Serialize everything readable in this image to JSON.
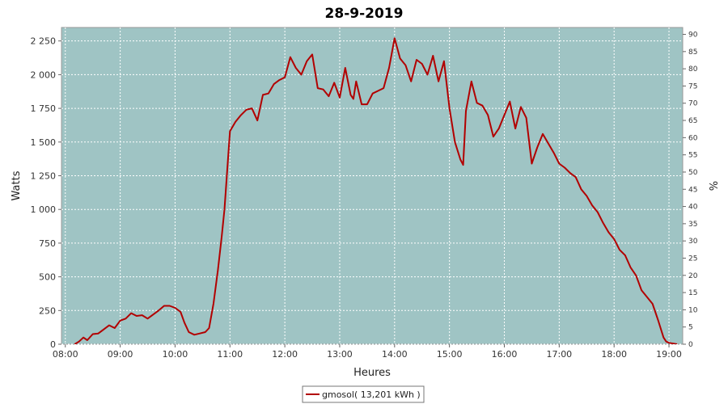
{
  "chart_data": {
    "type": "line",
    "title": "28-9-2019",
    "xlabel": "Heures",
    "ylabel": "Watts",
    "y2label": "%",
    "xlim": [
      7.93,
      19.25
    ],
    "ylim": [
      0,
      2350
    ],
    "y2lim": [
      0,
      92
    ],
    "x_ticks": [
      8,
      9,
      10,
      11,
      12,
      13,
      14,
      15,
      16,
      17,
      18,
      19
    ],
    "x_tick_labels": [
      "08:00",
      "09:00",
      "10:00",
      "11:00",
      "12:00",
      "13:00",
      "14:00",
      "15:00",
      "16:00",
      "17:00",
      "18:00",
      "19:00"
    ],
    "y_ticks": [
      0,
      250,
      500,
      750,
      1000,
      1250,
      1500,
      1750,
      2000,
      2250
    ],
    "y_tick_labels": [
      "0",
      "250",
      "500",
      "750",
      "1 000",
      "1 250",
      "1 500",
      "1 750",
      "2 000",
      "2 250"
    ],
    "y2_ticks": [
      0,
      5,
      10,
      15,
      20,
      25,
      30,
      35,
      40,
      45,
      50,
      55,
      60,
      65,
      70,
      75,
      80,
      85,
      90
    ],
    "y2_tick_labels": [
      "0",
      "5",
      "10",
      "15",
      "20",
      "25",
      "30",
      "35",
      "40",
      "45",
      "50",
      "55",
      "60",
      "65",
      "70",
      "75",
      "80",
      "85",
      "90"
    ],
    "grid": true,
    "legend_position": "bottom-center",
    "colors": {
      "line": "#b20000",
      "plot_bg": "#9fc4c4",
      "grid": "#ffffff"
    },
    "series": [
      {
        "name": "gmosol( 13,201 kWh )",
        "x": [
          8.17,
          8.25,
          8.33,
          8.4,
          8.5,
          8.6,
          8.7,
          8.8,
          8.9,
          9.0,
          9.1,
          9.2,
          9.3,
          9.4,
          9.5,
          9.6,
          9.7,
          9.8,
          9.9,
          10.0,
          10.1,
          10.17,
          10.25,
          10.35,
          10.45,
          10.55,
          10.62,
          10.7,
          10.78,
          10.85,
          10.9,
          11.0,
          11.1,
          11.2,
          11.3,
          11.4,
          11.5,
          11.6,
          11.7,
          11.8,
          11.9,
          12.0,
          12.1,
          12.2,
          12.3,
          12.4,
          12.5,
          12.6,
          12.7,
          12.8,
          12.9,
          13.0,
          13.1,
          13.2,
          13.25,
          13.3,
          13.4,
          13.5,
          13.6,
          13.7,
          13.8,
          13.9,
          14.0,
          14.1,
          14.2,
          14.3,
          14.4,
          14.5,
          14.6,
          14.7,
          14.8,
          14.9,
          15.0,
          15.1,
          15.2,
          15.25,
          15.3,
          15.4,
          15.5,
          15.6,
          15.7,
          15.8,
          15.9,
          16.0,
          16.1,
          16.2,
          16.3,
          16.4,
          16.5,
          16.6,
          16.7,
          16.8,
          16.9,
          17.0,
          17.1,
          17.2,
          17.3,
          17.4,
          17.5,
          17.6,
          17.7,
          17.8,
          17.9,
          18.0,
          18.1,
          18.2,
          18.3,
          18.4,
          18.5,
          18.6,
          18.7,
          18.8,
          18.9,
          18.95,
          19.0,
          19.15
        ],
        "values": [
          0,
          20,
          50,
          30,
          75,
          80,
          110,
          140,
          120,
          175,
          190,
          230,
          210,
          215,
          190,
          220,
          250,
          285,
          285,
          270,
          240,
          160,
          90,
          70,
          80,
          90,
          120,
          300,
          550,
          800,
          1000,
          1580,
          1650,
          1700,
          1740,
          1750,
          1660,
          1850,
          1860,
          1930,
          1960,
          1980,
          2130,
          2050,
          2000,
          2100,
          2150,
          1900,
          1890,
          1840,
          1940,
          1830,
          2050,
          1850,
          1820,
          1950,
          1780,
          1780,
          1860,
          1880,
          1900,
          2050,
          2270,
          2120,
          2070,
          1950,
          2110,
          2080,
          2000,
          2140,
          1950,
          2100,
          1750,
          1500,
          1370,
          1330,
          1730,
          1950,
          1790,
          1770,
          1700,
          1540,
          1600,
          1700,
          1800,
          1600,
          1760,
          1680,
          1340,
          1460,
          1560,
          1490,
          1420,
          1340,
          1310,
          1270,
          1240,
          1150,
          1100,
          1030,
          980,
          900,
          830,
          780,
          700,
          660,
          570,
          510,
          400,
          350,
          300,
          180,
          50,
          20,
          10,
          0
        ]
      }
    ]
  }
}
